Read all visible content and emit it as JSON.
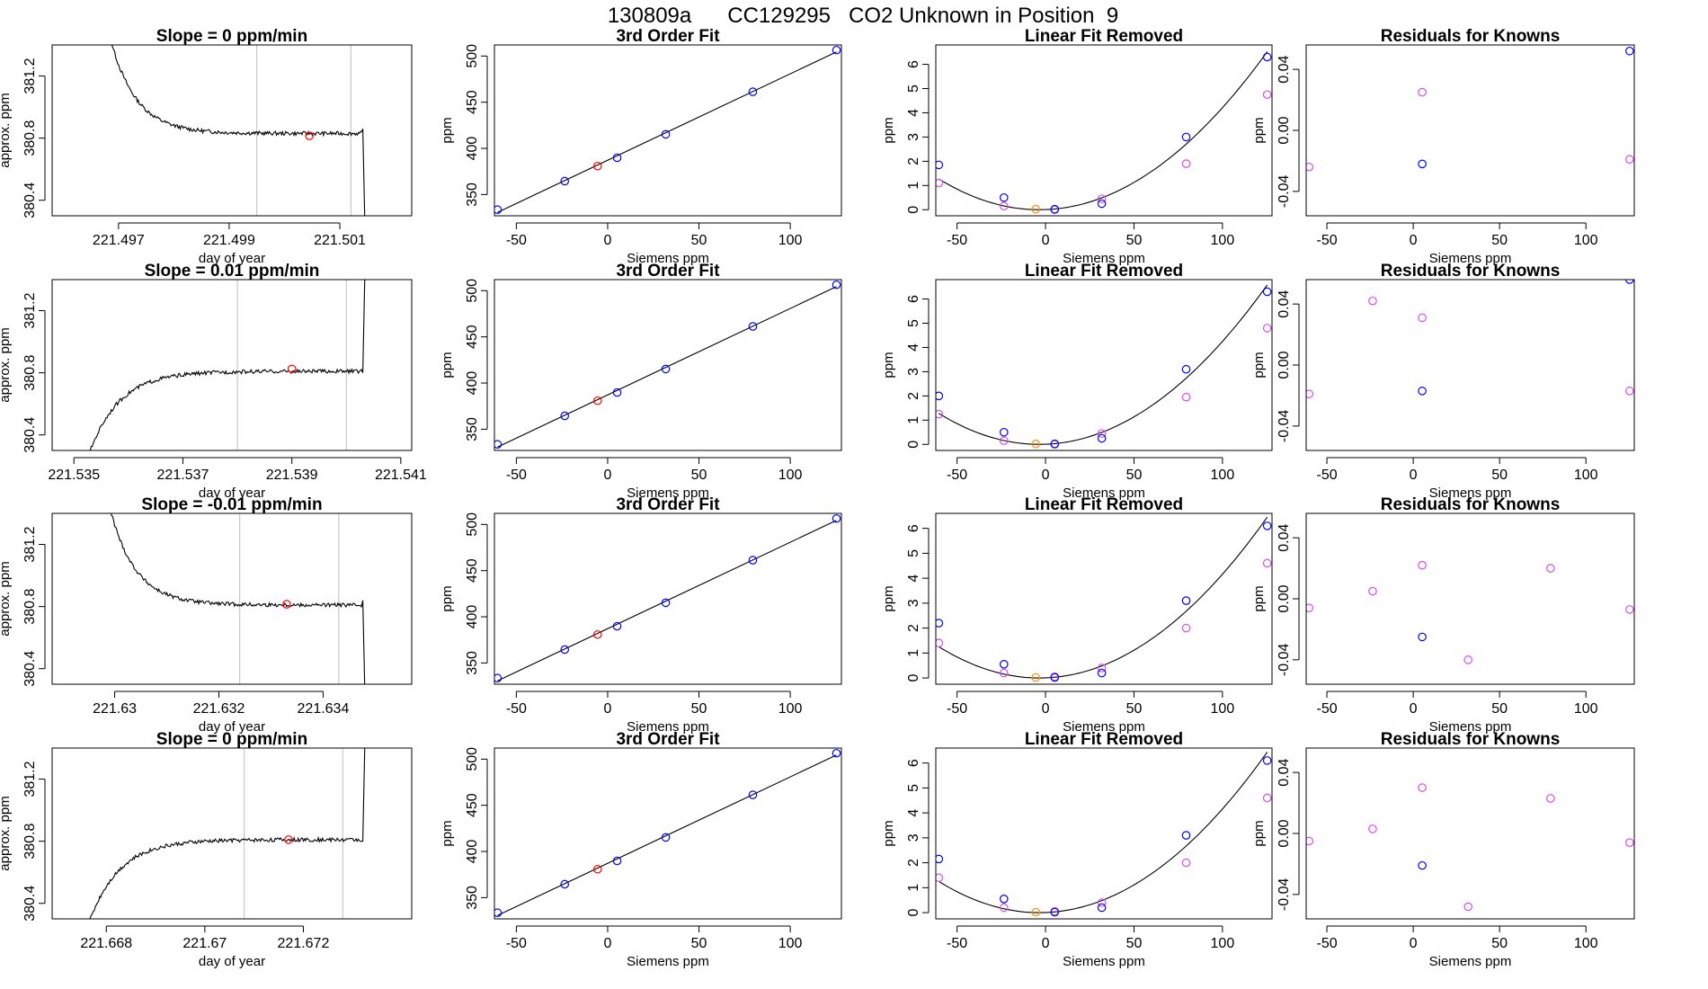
{
  "title": "130809a      CC129295   CO2 Unknown in Position  9",
  "colors": {
    "known": "#0000ff",
    "unknown": "#ff0000",
    "unknown_fit": "#ff8c00",
    "residual": "#d94bf0",
    "line": "#000000",
    "vline": "#bebebe"
  },
  "chart_data": [
    {
      "type": "line",
      "kind": "trace",
      "title": "Slope =  0  ppm/min",
      "xlabel": "day of year",
      "ylabel": "approx. ppm",
      "xlim": [
        221.4958,
        221.5023
      ],
      "ylim": [
        380.3,
        381.4
      ],
      "xticks": [
        221.497,
        221.499,
        221.501
      ],
      "yticks": [
        380.4,
        380.8,
        381.2
      ],
      "profile": "fall",
      "level": 380.83,
      "vlines": [
        221.4995,
        221.5012
      ],
      "point": [
        221.50045,
        380.815
      ]
    },
    {
      "type": "scatter",
      "kind": "fit",
      "title": "3rd Order Fit",
      "xlabel": "Siemens ppm",
      "ylabel": "ppm",
      "xlim": [
        -62,
        128
      ],
      "ylim": [
        327,
        512
      ],
      "xticks": [
        -50,
        0,
        50,
        100
      ],
      "yticks": [
        350,
        400,
        450,
        500
      ],
      "known_x": [
        -60.3,
        -23.5,
        5.2,
        31.8,
        79.5,
        125.3
      ],
      "known_y": [
        333.6,
        364.5,
        389.8,
        415.2,
        461.3,
        506.4
      ],
      "unknown_x": [
        -5.5
      ],
      "unknown_y": [
        380.8
      ]
    },
    {
      "type": "scatter",
      "kind": "linear_removed",
      "title": "Linear Fit Removed",
      "xlabel": "Siemens ppm",
      "ylabel": "ppm",
      "xlim": [
        -62,
        128
      ],
      "ylim": [
        -0.25,
        6.8
      ],
      "xticks": [
        -50,
        0,
        50,
        100
      ],
      "yticks": [
        0,
        1,
        2,
        3,
        4,
        5,
        6
      ],
      "known_x": [
        -60.3,
        -23.5,
        5.2,
        31.8,
        79.5,
        125.3
      ],
      "known_y": [
        1.85,
        0.5,
        0.02,
        0.25,
        3.0,
        6.3
      ],
      "magenta_x": [
        -60.3,
        -23.5,
        5.2,
        31.8,
        79.5,
        125.3
      ],
      "magenta_y": [
        1.1,
        0.15,
        0.0,
        0.45,
        1.9,
        4.75
      ],
      "unknown_x": [
        -5.5
      ],
      "unknown_y": [
        0.02
      ],
      "curve_vertex": [
        -3.5,
        0.0
      ]
    },
    {
      "type": "scatter",
      "kind": "residuals",
      "title": "Residuals for Knowns",
      "xlabel": "Siemens ppm",
      "ylabel": "ppm",
      "xlim": [
        -62,
        128
      ],
      "ylim": [
        -0.056,
        0.056
      ],
      "xticks": [
        -50,
        0,
        50,
        100
      ],
      "yticks": [
        -0.04,
        0.0,
        0.04
      ],
      "blue_x": [
        5.2,
        125.3
      ],
      "blue_y": [
        -0.022,
        0.052
      ],
      "magenta_x": [
        -60.3,
        5.2,
        125.3
      ],
      "magenta_y": [
        -0.024,
        0.025,
        -0.019
      ]
    },
    {
      "type": "line",
      "kind": "trace",
      "title": "Slope =  0.01  ppm/min",
      "xlabel": "day of year",
      "ylabel": "approx. ppm",
      "xlim": [
        221.5346,
        221.5412
      ],
      "ylim": [
        380.3,
        381.4
      ],
      "xticks": [
        221.535,
        221.537,
        221.539,
        221.541
      ],
      "yticks": [
        380.4,
        380.8,
        381.2
      ],
      "profile": "rise",
      "level": 380.81,
      "vlines": [
        221.538,
        221.54
      ],
      "point": [
        221.539,
        380.825
      ]
    },
    {
      "type": "scatter",
      "kind": "fit",
      "title": "3rd Order Fit",
      "xlabel": "Siemens ppm",
      "ylabel": "ppm",
      "xlim": [
        -62,
        128
      ],
      "ylim": [
        327,
        512
      ],
      "xticks": [
        -50,
        0,
        50,
        100
      ],
      "yticks": [
        350,
        400,
        450,
        500
      ],
      "known_x": [
        -60.3,
        -23.5,
        5.2,
        31.8,
        79.5,
        125.3
      ],
      "known_y": [
        333.6,
        364.5,
        389.8,
        415.2,
        461.3,
        506.4
      ],
      "unknown_x": [
        -5.5
      ],
      "unknown_y": [
        380.8
      ]
    },
    {
      "type": "scatter",
      "kind": "linear_removed",
      "title": "Linear Fit Removed",
      "xlabel": "Siemens ppm",
      "ylabel": "ppm",
      "xlim": [
        -62,
        128
      ],
      "ylim": [
        -0.25,
        6.8
      ],
      "xticks": [
        -50,
        0,
        50,
        100
      ],
      "yticks": [
        0,
        1,
        2,
        3,
        4,
        5,
        6
      ],
      "known_x": [
        -60.3,
        -23.5,
        5.2,
        31.8,
        79.5,
        125.3
      ],
      "known_y": [
        2.0,
        0.5,
        0.02,
        0.25,
        3.1,
        6.3
      ],
      "magenta_x": [
        -60.3,
        -23.5,
        5.2,
        31.8,
        79.5,
        125.3
      ],
      "magenta_y": [
        1.25,
        0.15,
        0.0,
        0.45,
        1.95,
        4.8
      ],
      "unknown_x": [
        -5.5
      ],
      "unknown_y": [
        0.02
      ],
      "curve_vertex": [
        -3.5,
        0.0
      ]
    },
    {
      "type": "scatter",
      "kind": "residuals",
      "title": "Residuals for Knowns",
      "xlabel": "Siemens ppm",
      "ylabel": "ppm",
      "xlim": [
        -62,
        128
      ],
      "ylim": [
        -0.056,
        0.056
      ],
      "xticks": [
        -50,
        0,
        50,
        100
      ],
      "yticks": [
        -0.04,
        0.0,
        0.04
      ],
      "blue_x": [
        5.2,
        125.3
      ],
      "blue_y": [
        -0.017,
        0.056
      ],
      "magenta_x": [
        -60.3,
        -23.5,
        5.2,
        125.3
      ],
      "magenta_y": [
        -0.019,
        0.042,
        0.031,
        -0.017
      ]
    },
    {
      "type": "line",
      "kind": "trace",
      "title": "Slope =  -0.01  ppm/min",
      "xlabel": "day of year",
      "ylabel": "approx. ppm",
      "xlim": [
        221.6288,
        221.6357
      ],
      "ylim": [
        380.3,
        381.4
      ],
      "xticks": [
        221.63,
        221.632,
        221.634
      ],
      "yticks": [
        380.4,
        380.8,
        381.2
      ],
      "profile": "fall",
      "level": 380.81,
      "vlines": [
        221.6324,
        221.6343
      ],
      "point": [
        221.6333,
        380.815
      ]
    },
    {
      "type": "scatter",
      "kind": "fit",
      "title": "3rd Order Fit",
      "xlabel": "Siemens ppm",
      "ylabel": "ppm",
      "xlim": [
        -62,
        128
      ],
      "ylim": [
        327,
        512
      ],
      "xticks": [
        -50,
        0,
        50,
        100
      ],
      "yticks": [
        350,
        400,
        450,
        500
      ],
      "known_x": [
        -60.3,
        -23.5,
        5.2,
        31.8,
        79.5,
        125.3
      ],
      "known_y": [
        333.6,
        364.5,
        389.8,
        415.2,
        461.3,
        506.4
      ],
      "unknown_x": [
        -5.5
      ],
      "unknown_y": [
        380.8
      ]
    },
    {
      "type": "scatter",
      "kind": "linear_removed",
      "title": "Linear Fit Removed",
      "xlabel": "Siemens ppm",
      "ylabel": "ppm",
      "xlim": [
        -62,
        128
      ],
      "ylim": [
        -0.25,
        6.6
      ],
      "xticks": [
        -50,
        0,
        50,
        100
      ],
      "yticks": [
        0,
        1,
        2,
        3,
        4,
        5,
        6
      ],
      "known_x": [
        -60.3,
        -23.5,
        5.2,
        31.8,
        79.5,
        125.3
      ],
      "known_y": [
        2.2,
        0.55,
        0.02,
        0.2,
        3.1,
        6.1
      ],
      "magenta_x": [
        -60.3,
        -23.5,
        5.2,
        31.8,
        79.5,
        125.3
      ],
      "magenta_y": [
        1.4,
        0.2,
        0.05,
        0.4,
        2.0,
        4.6
      ],
      "unknown_x": [
        -5.5
      ],
      "unknown_y": [
        0.02
      ],
      "curve_vertex": [
        -3.5,
        0.0
      ]
    },
    {
      "type": "scatter",
      "kind": "residuals",
      "title": "Residuals for Knowns",
      "xlabel": "Siemens ppm",
      "ylabel": "ppm",
      "xlim": [
        -62,
        128
      ],
      "ylim": [
        -0.056,
        0.056
      ],
      "xticks": [
        -50,
        0,
        50,
        100
      ],
      "yticks": [
        -0.04,
        0.0,
        0.04
      ],
      "blue_x": [
        5.2
      ],
      "blue_y": [
        -0.025
      ],
      "magenta_x": [
        -60.3,
        -23.5,
        5.2,
        31.8,
        79.5,
        125.3
      ],
      "magenta_y": [
        -0.006,
        0.005,
        0.022,
        -0.04,
        0.02,
        -0.007
      ]
    },
    {
      "type": "line",
      "kind": "trace",
      "title": "Slope =  0  ppm/min",
      "xlabel": "day of year",
      "ylabel": "approx. ppm",
      "xlim": [
        221.6669,
        221.6742
      ],
      "ylim": [
        380.3,
        381.4
      ],
      "xticks": [
        221.668,
        221.67,
        221.672
      ],
      "yticks": [
        380.4,
        380.8,
        381.2
      ],
      "profile": "rise",
      "level": 380.81,
      "vlines": [
        221.6708,
        221.6728
      ],
      "point": [
        221.6717,
        380.81
      ]
    },
    {
      "type": "scatter",
      "kind": "fit",
      "title": "3rd Order Fit",
      "xlabel": "Siemens ppm",
      "ylabel": "ppm",
      "xlim": [
        -62,
        128
      ],
      "ylim": [
        327,
        512
      ],
      "xticks": [
        -50,
        0,
        50,
        100
      ],
      "yticks": [
        350,
        400,
        450,
        500
      ],
      "known_x": [
        -60.3,
        -23.5,
        5.2,
        31.8,
        79.5,
        125.3
      ],
      "known_y": [
        333.6,
        364.5,
        389.8,
        415.2,
        461.3,
        506.4
      ],
      "unknown_x": [
        -5.5
      ],
      "unknown_y": [
        380.8
      ]
    },
    {
      "type": "scatter",
      "kind": "linear_removed",
      "title": "Linear Fit Removed",
      "xlabel": "Siemens ppm",
      "ylabel": "ppm",
      "xlim": [
        -62,
        128
      ],
      "ylim": [
        -0.25,
        6.6
      ],
      "xticks": [
        -50,
        0,
        50,
        100
      ],
      "yticks": [
        0,
        1,
        2,
        3,
        4,
        5,
        6
      ],
      "known_x": [
        -60.3,
        -23.5,
        5.2,
        31.8,
        79.5,
        125.3
      ],
      "known_y": [
        2.15,
        0.55,
        0.02,
        0.2,
        3.1,
        6.1
      ],
      "magenta_x": [
        -60.3,
        -23.5,
        5.2,
        31.8,
        79.5,
        125.3
      ],
      "magenta_y": [
        1.4,
        0.2,
        0.05,
        0.4,
        2.0,
        4.6
      ],
      "unknown_x": [
        -5.5
      ],
      "unknown_y": [
        0.02
      ],
      "curve_vertex": [
        -3.5,
        0.0
      ]
    },
    {
      "type": "scatter",
      "kind": "residuals",
      "title": "Residuals for Knowns",
      "xlabel": "Siemens ppm",
      "ylabel": "ppm",
      "xlim": [
        -62,
        128
      ],
      "ylim": [
        -0.056,
        0.056
      ],
      "xticks": [
        -50,
        0,
        50,
        100
      ],
      "yticks": [
        -0.04,
        0.0,
        0.04
      ],
      "blue_x": [
        5.2
      ],
      "blue_y": [
        -0.021
      ],
      "magenta_x": [
        -60.3,
        -23.5,
        5.2,
        31.8,
        79.5,
        125.3
      ],
      "magenta_y": [
        -0.005,
        0.003,
        0.03,
        -0.048,
        0.023,
        -0.006
      ]
    }
  ]
}
